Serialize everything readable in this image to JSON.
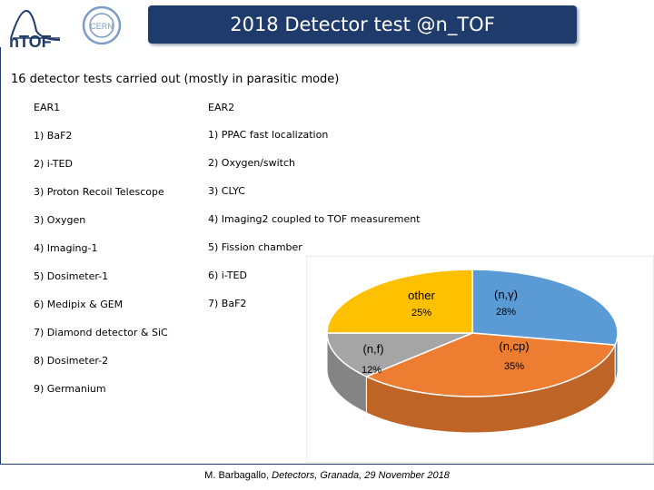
{
  "header": {
    "title": "2018 Detector test @n_TOF",
    "logo_ntof": "nTOF",
    "logo_cern": "CERN"
  },
  "subtitle": "16 detector tests carried out (mostly in parasitic mode)",
  "ear1": {
    "heading": "EAR1",
    "items": [
      "1) BaF2",
      "2) i-TED",
      "3) Proton Recoil Telescope",
      "3) Oxygen",
      "4) Imaging-1",
      "5) Dosimeter-1",
      "6) Medipix & GEM",
      "7) Diamond detector & SiC",
      "8) Dosimeter-2",
      "9) Germanium"
    ]
  },
  "ear2": {
    "heading": "EAR2",
    "items": [
      "1) PPAC fast localization",
      "2) Oxygen/switch",
      "3) CLYC",
      "4) Imaging2 coupled to TOF measurement",
      "5) Fission chamber",
      "6) i-TED",
      "7) BaF2"
    ]
  },
  "chart_data": {
    "type": "pie",
    "slices": [
      {
        "label": "(n,γ)",
        "value": 28,
        "value_label": "28%",
        "color": "#5b9bd5"
      },
      {
        "label": "(n,cp)",
        "value": 35,
        "value_label": "35%",
        "color": "#ed7d31"
      },
      {
        "label": "(n,f)",
        "value": 12,
        "value_label": "12%",
        "color": "#a5a5a5"
      },
      {
        "label": "other",
        "value": 25,
        "value_label": "25%",
        "color": "#ffc000"
      }
    ]
  },
  "footer": {
    "author": "M. Barbagallo, ",
    "event": "Detectors, Granada, 29 November 2018"
  }
}
